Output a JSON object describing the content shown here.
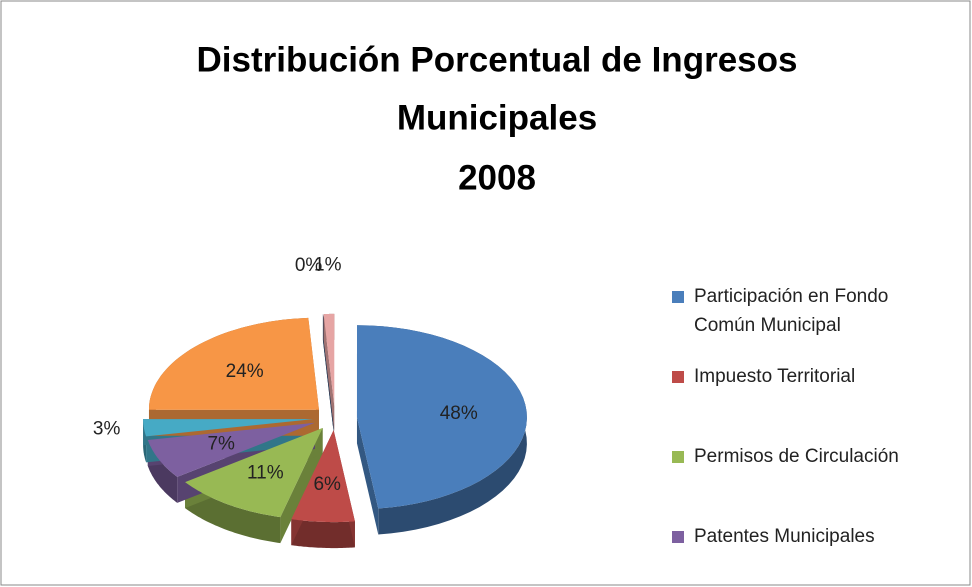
{
  "chart_data": {
    "type": "pie3d",
    "title": [
      "Distribución Porcentual de Ingresos",
      "Municipales",
      "2008"
    ],
    "categories": [
      "Participación en Fondo Común Municipal",
      "Impuesto Territorial",
      "Permisos de Circulación",
      "Patentes Municipales",
      null,
      null,
      null,
      null
    ],
    "values": [
      48,
      6,
      11,
      7,
      3,
      24,
      0,
      1
    ],
    "value_labels": [
      "48%",
      "6%",
      "11%",
      "7%",
      "3%",
      "24%",
      "0%",
      "1%"
    ],
    "colors": [
      "#4a7ebb",
      "#be4b48",
      "#98b954",
      "#7d60a0",
      "#46aac5",
      "#f79646",
      "#2c4d75",
      "#e6a5a4"
    ],
    "legend": "right"
  }
}
